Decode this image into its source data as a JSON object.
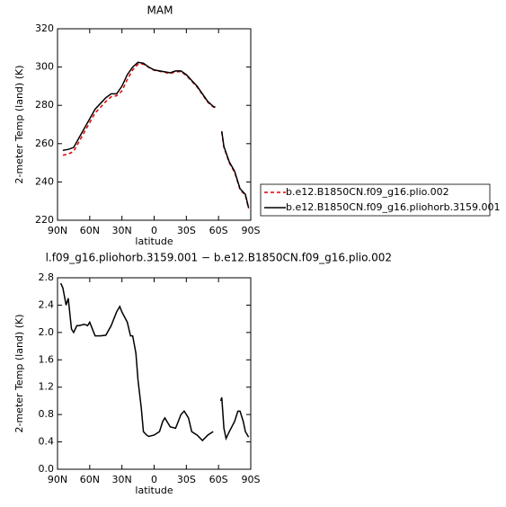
{
  "chart_data": [
    {
      "type": "line",
      "title": "MAM",
      "xlabel": "latitude",
      "ylabel": "2-meter Temp (land) (K)",
      "x": [
        85,
        80,
        75,
        70,
        65,
        60,
        55,
        50,
        45,
        40,
        35,
        30,
        25,
        20,
        15,
        10,
        5,
        0,
        -5,
        -10,
        -15,
        -20,
        -25,
        -30,
        -35,
        -40,
        -45,
        -50,
        -55,
        -57,
        -60,
        -63,
        -65,
        -70,
        -75,
        -80,
        -85,
        -88
      ],
      "series": [
        {
          "name": "b.e12.B1850CN.f09_g16.plio.002",
          "color": "#e00000",
          "dash": true,
          "values": [
            254,
            254.5,
            256,
            261,
            266,
            271,
            276,
            279,
            282,
            284.5,
            285,
            287.5,
            293.5,
            298.5,
            301.5,
            301.5,
            299.8,
            298.3,
            297.8,
            297.2,
            296.6,
            297.6,
            297.6,
            295.6,
            292.6,
            289.6,
            285.6,
            281.6,
            279.2,
            278.7,
            null,
            266,
            258,
            250,
            245,
            236,
            233,
            226
          ]
        },
        {
          "name": "b.e12.B1850CN.f09_g16.pliohorb.3159.001",
          "color": "#000000",
          "dash": false,
          "values": [
            256.5,
            257,
            258,
            263,
            268,
            273,
            278,
            281,
            284,
            286,
            286,
            290,
            296,
            300,
            302.5,
            302,
            300,
            298.5,
            298,
            297.5,
            297,
            298,
            298,
            296,
            293,
            290,
            286,
            282,
            279.5,
            279,
            null,
            266.5,
            258.5,
            250.5,
            245.5,
            236.5,
            233.5,
            226.5
          ]
        }
      ],
      "xlim": [
        90,
        -90
      ],
      "ylim": [
        220,
        320
      ],
      "xticks": [
        {
          "value": 90,
          "label": "90N"
        },
        {
          "value": 60,
          "label": "60N"
        },
        {
          "value": 30,
          "label": "30N"
        },
        0,
        {
          "value": -30,
          "label": "30S"
        },
        {
          "value": -60,
          "label": "60S"
        },
        {
          "value": -90,
          "label": "90S"
        }
      ],
      "yticks": [
        220,
        240,
        260,
        280,
        300,
        320
      ],
      "legend": "right"
    },
    {
      "type": "line",
      "title": "l.f09_g16.pliohorb.3159.001 − b.e12.B1850CN.f09_g16.plio.002",
      "xlabel": "latitude",
      "ylabel": "2-meter Temp (land) (K)",
      "x": [
        87,
        85,
        82,
        80,
        77,
        75,
        72,
        70,
        65,
        62,
        60,
        55,
        50,
        45,
        40,
        35,
        32,
        30,
        25,
        22,
        20,
        17,
        15,
        12,
        10,
        7,
        5,
        0,
        -5,
        -8,
        -10,
        -15,
        -20,
        -25,
        -28,
        -32,
        -35,
        -40,
        -45,
        -50,
        -55,
        -60,
        -62,
        -63,
        -65,
        -67,
        -70,
        -75,
        -78,
        -80,
        -83,
        -85,
        -88
      ],
      "series": [
        {
          "color": "#000000",
          "dash": false,
          "values": [
            2.72,
            2.65,
            2.4,
            2.5,
            2.05,
            2.0,
            2.1,
            2.1,
            2.12,
            2.1,
            2.15,
            1.95,
            1.95,
            1.96,
            2.1,
            2.3,
            2.38,
            2.3,
            2.15,
            1.95,
            1.95,
            1.7,
            1.3,
            0.9,
            0.55,
            0.5,
            0.48,
            0.5,
            0.55,
            0.7,
            0.75,
            0.62,
            0.6,
            0.8,
            0.85,
            0.75,
            0.55,
            0.5,
            0.42,
            0.5,
            0.55,
            null,
            1.0,
            1.05,
            0.6,
            0.45,
            0.55,
            0.7,
            0.85,
            0.85,
            0.7,
            0.55,
            0.47
          ]
        }
      ],
      "xlim": [
        90,
        -90
      ],
      "ylim": [
        0,
        2.8
      ],
      "xticks": [
        {
          "value": 90,
          "label": "90N"
        },
        {
          "value": 60,
          "label": "60N"
        },
        {
          "value": 30,
          "label": "30N"
        },
        0,
        {
          "value": -30,
          "label": "30S"
        },
        {
          "value": -60,
          "label": "60S"
        },
        {
          "value": -90,
          "label": "90S"
        }
      ],
      "yticks": [
        {
          "value": 0,
          "label": "0.0"
        },
        0.4,
        0.8,
        1.2,
        1.6,
        {
          "value": 2,
          "label": "2.0"
        },
        2.4,
        2.8
      ]
    }
  ]
}
